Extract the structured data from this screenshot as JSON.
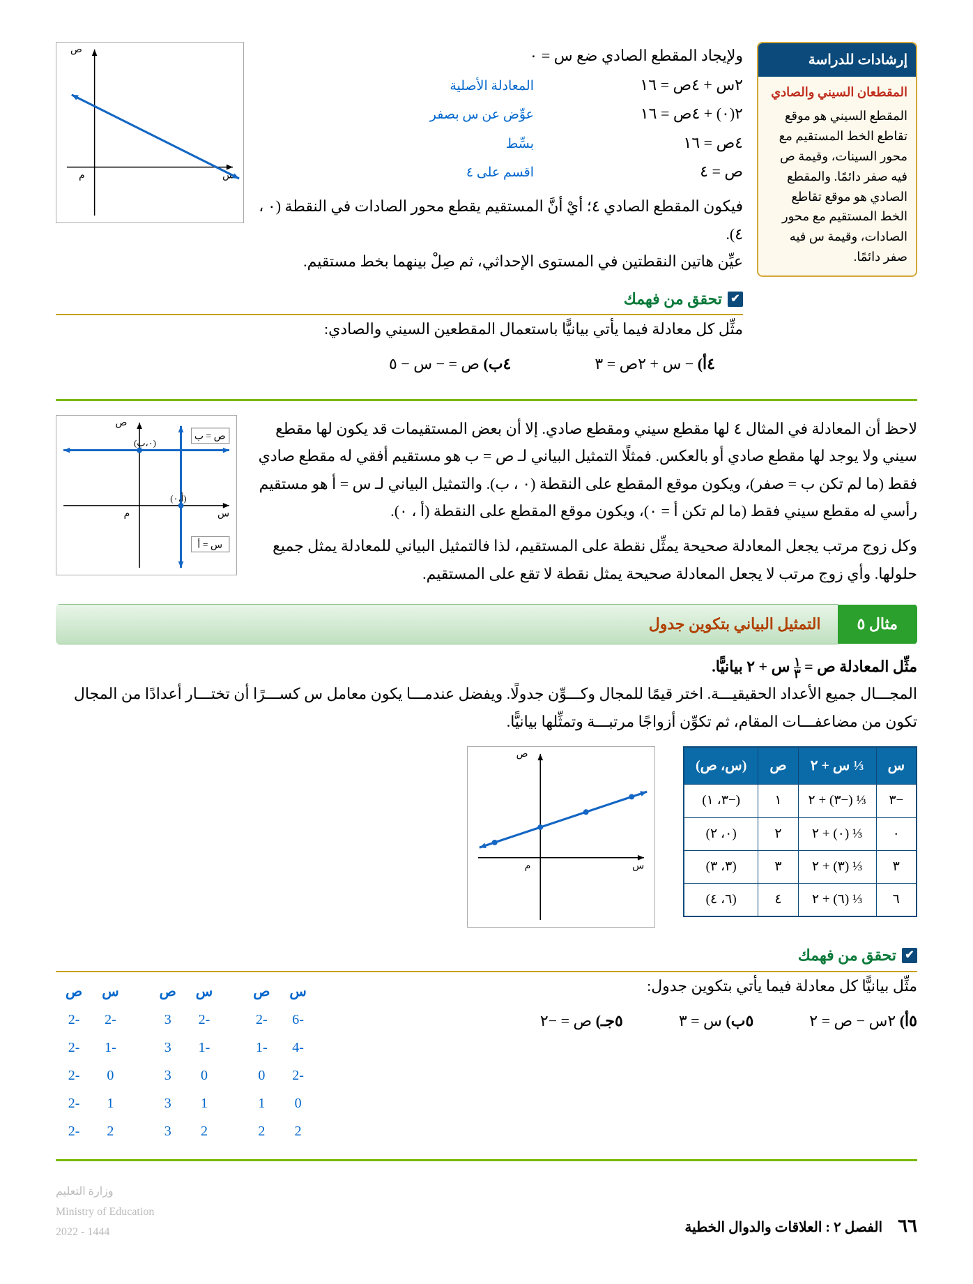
{
  "sidebar": {
    "header": "إرشادات للدراسة",
    "subhead": "المقطعان السيني والصادي",
    "body": "المقطع السيني هو موقع تقاطع الخط المستقيم مع محور السينات، وقيمة ص فيه صفر دائمًا. والمقطع الصادي هو موقع تقاطع الخط المستقيم مع محور الصادات، وقيمة س فيه صفر دائمًا."
  },
  "intro_line": "ولإيجاد المقطع الصادي ضع س = ٠",
  "equations": [
    {
      "lhs": "٢س + ٤ص = ١٦",
      "note": "المعادلة الأصلية"
    },
    {
      "lhs": "٢(٠) + ٤ص = ١٦",
      "note": "عوِّض عن س بصفر"
    },
    {
      "lhs": "٤ص = ١٦",
      "note": "بسِّط"
    },
    {
      "lhs": "ص = ٤",
      "note": "اقسم على ٤"
    }
  ],
  "para1": "فيكون المقطع الصادي ٤؛ أيْ أنَّ المستقيم يقطع محور الصادات في النقطة (٠ ، ٤).",
  "para2": "عيِّن هاتين النقطتين في المستوى الإحداثي، ثم صِلْ بينهما بخط مستقيم.",
  "check_label": "تحقق من فهمك",
  "check_text": "مثِّل كل معادلة فيما يأتي بيانيًّا باستعمال المقطعين السيني والصادي:",
  "ex4a_id": "٤أ)",
  "ex4a": "− س + ٢ص = ٣",
  "ex4b_id": "٤ب)",
  "ex4b": "ص = − س − ٥",
  "big_para": "لاحظ أن المعادلة في المثال ٤ لها مقطع سيني ومقطع صادي. إلا أن بعض المستقيمات قد يكون لها مقطع سيني ولا يوجد لها مقطع صادي أو بالعكس. فمثلًا التمثيل البياني لـ ص = ب هو مستقيم أفقي له مقطع صادي فقط (ما لم تكن ب = صفر)، ويكون موقع المقطع على النقطة (٠ ، ب). والتمثيل البياني لـ س = أ هو مستقيم رأسي له مقطع سيني فقط (ما لم تكن أ = ٠)، ويكون موقع المقطع على النقطة (أ ، ٠).",
  "big_para2": "وكل زوج مرتب يجعل المعادلة صحيحة يمثِّل نقطة على المستقيم، لذا فالتمثيل البياني للمعادلة يمثل جميع حلولها. وأي زوج مرتب لا يجعل المعادلة صحيحة يمثل نقطة لا تقع على المستقيم.",
  "example5_num": "مثال ٥",
  "example5_title": "التمثيل البياني بتكوين جدول",
  "ex5_line1_a": "مثِّل المعادلة ص = ",
  "ex5_line1_b": " س + ٢ بيانيًّا.",
  "ex5_para": "المجـــال جميع الأعداد الحقيقيـــة. اختر قيمًا للمجال وكـــوِّن جدولًا. ويفضل عندمـــا يكون معامل س كســـرًا أن تختـــار أعدادًا من المجال تكون من مضاعفـــات المقام، ثم تكوِّن أزواجًا مرتبـــة وتمثِّلها بيانيًّا.",
  "table5": {
    "headers": [
      "س",
      "⅓ س + ٢",
      "ص",
      "(س، ص)"
    ],
    "rows": [
      [
        "−٣",
        "⅓ (−٣) + ٢",
        "١",
        "(−٣، ١)"
      ],
      [
        "٠",
        "⅓ (٠) + ٢",
        "٢",
        "(٠، ٢)"
      ],
      [
        "٣",
        "⅓ (٣) + ٢",
        "٣",
        "(٣، ٣)"
      ],
      [
        "٦",
        "⅓ (٦) + ٢",
        "٤",
        "(٦، ٤)"
      ]
    ]
  },
  "check2_text": "مثِّل بيانيًّا كل معادلة فيما يأتي بتكوين جدول:",
  "ex5a_id": "٥أ)",
  "ex5a": "٢س − ص = ٢",
  "ex5b_id": "٥ب)",
  "ex5b": "س = ٣",
  "ex5c_id": "٥جـ)",
  "ex5c": "ص = −٢",
  "small_tables": [
    {
      "h": [
        "س",
        "ص"
      ],
      "r": [
        [
          "-6",
          "-2"
        ],
        [
          "-4",
          "-1"
        ],
        [
          "-2",
          "0"
        ],
        [
          "0",
          "1"
        ],
        [
          "2",
          "2"
        ]
      ]
    },
    {
      "h": [
        "س",
        "ص"
      ],
      "r": [
        [
          "-2",
          "3"
        ],
        [
          "-1",
          "3"
        ],
        [
          "0",
          "3"
        ],
        [
          "1",
          "3"
        ],
        [
          "2",
          "3"
        ]
      ]
    },
    {
      "h": [
        "س",
        "ص"
      ],
      "r": [
        [
          "-2",
          "-2"
        ],
        [
          "-1",
          "-2"
        ],
        [
          "0",
          "-2"
        ],
        [
          "1",
          "-2"
        ],
        [
          "2",
          "-2"
        ]
      ]
    }
  ],
  "page_num": "٦٦",
  "chapter": "الفصل ٢ : العلاقات والدوال الخطية",
  "moe1": "وزارة التعليم",
  "moe2": "Ministry of Education",
  "moe3": "2022 - 1444",
  "graphs": {
    "g1": {
      "grid": "#bfbfbf",
      "axis": "#000",
      "line": "#1466c4",
      "bg": "#fff",
      "arrow": "#1466c4"
    },
    "g2": {
      "grid": "#bfbfbf",
      "axis": "#000",
      "hline": "#1466c4",
      "vline": "#1466c4",
      "bg": "#fff",
      "lab1": "ص = ب",
      "lab2": "س = أ",
      "pt1": "(٠،ب)",
      "pt2": "(أ،٠)"
    },
    "g3": {
      "grid": "#bfbfbf",
      "axis": "#000",
      "line": "#1466c4",
      "bg": "#fff"
    }
  }
}
